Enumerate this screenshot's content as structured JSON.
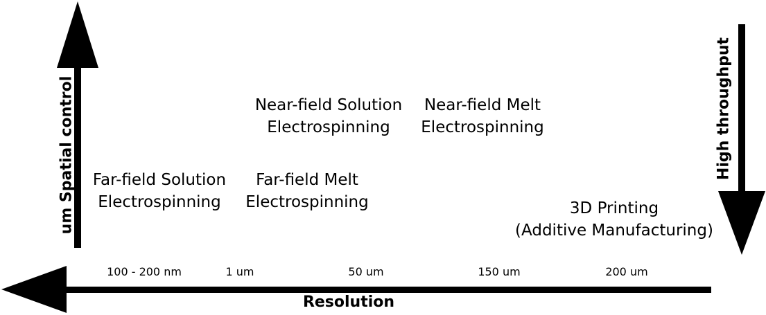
{
  "axes": {
    "x_title": "Resolution",
    "left_title": "um Spatial control",
    "right_title": "High throughput",
    "ticks": [
      "100 - 200 nm",
      "1 um",
      "50 um",
      "150 um",
      "200 um"
    ]
  },
  "methods": [
    {
      "line1": "Far-field Solution",
      "line2": "Electrospinning"
    },
    {
      "line1": "Far-field Melt",
      "line2": "Electrospinning"
    },
    {
      "line1": "Near-field Solution",
      "line2": "Electrospinning"
    },
    {
      "line1": "Near-field Melt",
      "line2": "Electrospinning"
    },
    {
      "line1": "3D Printing",
      "line2": "(Additive Manufacturing)"
    }
  ],
  "colors": {
    "ink": "#000000",
    "background": "#ffffff"
  }
}
